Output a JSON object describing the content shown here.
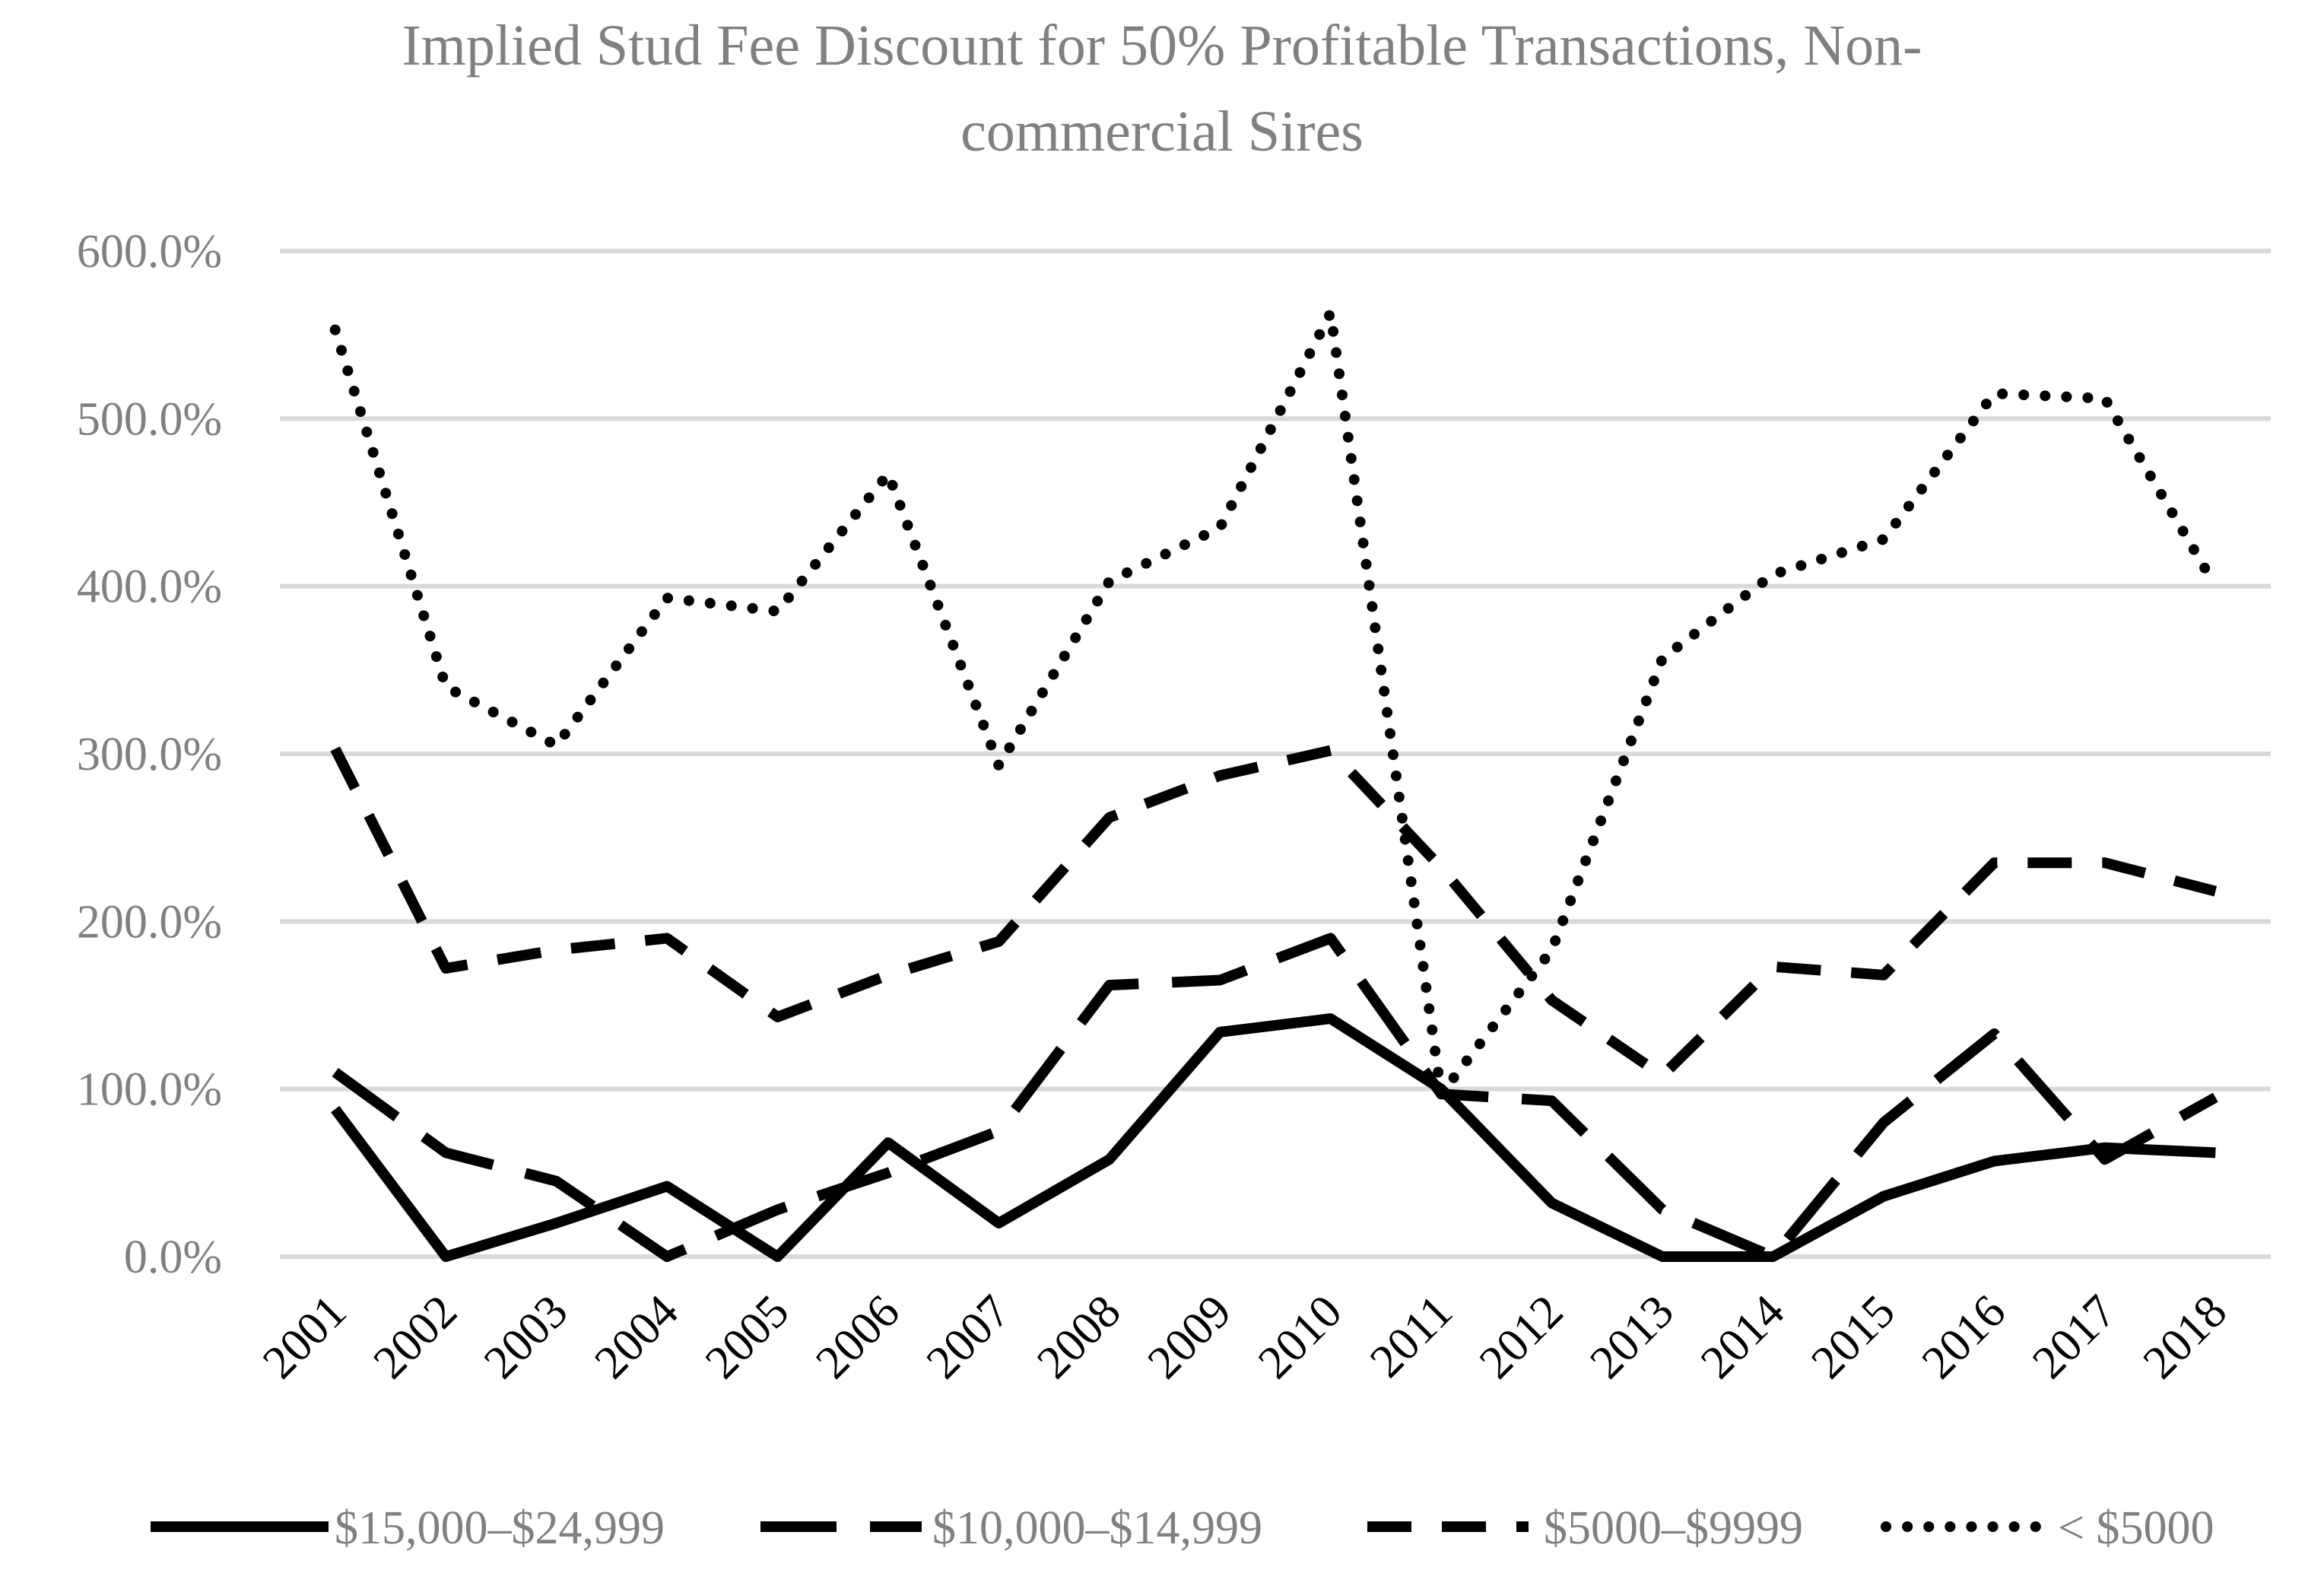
{
  "chart_data": {
    "type": "line",
    "title_line1": "Implied Stud Fee Discount for 50% Profitable Transactions, Non-",
    "title_line2": "commercial Sires",
    "categories": [
      "2001",
      "2002",
      "2003",
      "2004",
      "2005",
      "2006",
      "2007",
      "2008",
      "2009",
      "2010",
      "2011",
      "2012",
      "2013",
      "2014",
      "2015",
      "2016",
      "2017",
      "2018"
    ],
    "y_ticks": [
      "0.0%",
      "100.0%",
      "200.0%",
      "300.0%",
      "400.0%",
      "500.0%",
      "600.0%"
    ],
    "ylim": [
      0,
      600
    ],
    "xlabel": "",
    "ylabel": "",
    "grid": true,
    "legend_position": "bottom",
    "series": [
      {
        "name": "$15,000–$24,999",
        "style": "solid",
        "values": [
          88,
          0,
          20,
          42,
          0,
          68,
          20,
          58,
          134,
          142,
          100,
          32,
          0,
          0,
          36,
          57,
          65,
          62
        ]
      },
      {
        "name": "$10,000–$14,999",
        "style": "long-dash",
        "values": [
          110,
          62,
          45,
          0,
          28,
          50,
          75,
          162,
          165,
          190,
          97,
          93,
          28,
          0,
          80,
          133,
          58,
          95
        ]
      },
      {
        "name": "$5000–$9999",
        "style": "dash",
        "values": [
          303,
          172,
          183,
          190,
          143,
          168,
          188,
          262,
          287,
          302,
          232,
          153,
          108,
          173,
          168,
          235,
          235,
          218
        ]
      },
      {
        "name": "< $5000",
        "style": "dot",
        "values": [
          553,
          340,
          305,
          393,
          385,
          467,
          293,
          403,
          435,
          563,
          97,
          183,
          357,
          407,
          428,
          515,
          512,
          400
        ]
      }
    ]
  }
}
